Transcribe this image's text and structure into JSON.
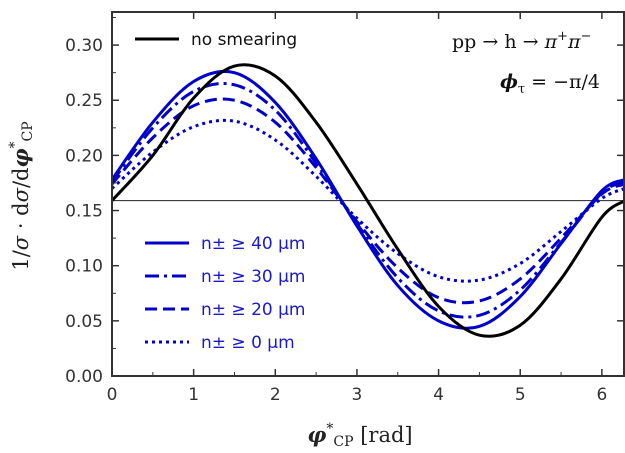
{
  "chart_data": {
    "type": "line",
    "title": "",
    "xlabel": "φ*CP [rad]",
    "ylabel": "1/σ · dσ/dφ*CP",
    "xlim": [
      0,
      6.2832
    ],
    "ylim": [
      0,
      0.33
    ],
    "x_ticks": [
      "0",
      "1",
      "2",
      "3",
      "4",
      "5",
      "6"
    ],
    "y_ticks": [
      "0.00",
      "0.05",
      "0.10",
      "0.15",
      "0.20",
      "0.25",
      "0.30"
    ],
    "grid": false,
    "reference_line": {
      "y": 0.159
    },
    "annotations": [
      "pp → h → π⁺π⁻",
      "ϕτ = −π/4"
    ],
    "legend": {
      "top_left": [
        "no smearing"
      ],
      "bottom_left": [
        "n± ≥ 40 μm",
        "n± ≥ 30 μm",
        "n± ≥ 20 μm",
        "n± ≥ 0 μm"
      ]
    },
    "x": [
      0,
      0.5,
      1.0,
      1.5,
      2.0,
      2.5,
      3.0,
      3.5,
      4.0,
      4.5,
      5.0,
      5.5,
      6.0,
      6.2832
    ],
    "series": [
      {
        "name": "no smearing",
        "color": "#000000",
        "dash": "solid",
        "values": [
          0.159,
          0.2,
          0.252,
          0.281,
          0.272,
          0.23,
          0.174,
          0.115,
          0.063,
          0.037,
          0.046,
          0.088,
          0.144,
          0.159
        ]
      },
      {
        "name": "n± ≥ 40 μm",
        "color": "#0000cc",
        "dash": "solid",
        "values": [
          0.178,
          0.23,
          0.267,
          0.275,
          0.248,
          0.197,
          0.136,
          0.082,
          0.05,
          0.045,
          0.072,
          0.12,
          0.168,
          0.178
        ]
      },
      {
        "name": "n± ≥ 30 μm",
        "color": "#0000cc",
        "dash": "dashdot",
        "values": [
          0.176,
          0.225,
          0.258,
          0.264,
          0.241,
          0.193,
          0.138,
          0.089,
          0.059,
          0.055,
          0.078,
          0.121,
          0.166,
          0.176
        ]
      },
      {
        "name": "n± ≥ 20 μm",
        "color": "#0000cc",
        "dash": "dashed",
        "values": [
          0.174,
          0.216,
          0.245,
          0.25,
          0.23,
          0.189,
          0.14,
          0.098,
          0.071,
          0.068,
          0.088,
          0.125,
          0.165,
          0.174
        ]
      },
      {
        "name": "n± ≥ 0 μm",
        "color": "#0000cc",
        "dash": "dotted",
        "values": [
          0.17,
          0.203,
          0.226,
          0.231,
          0.214,
          0.181,
          0.143,
          0.111,
          0.09,
          0.087,
          0.102,
          0.131,
          0.161,
          0.17
        ]
      }
    ]
  }
}
